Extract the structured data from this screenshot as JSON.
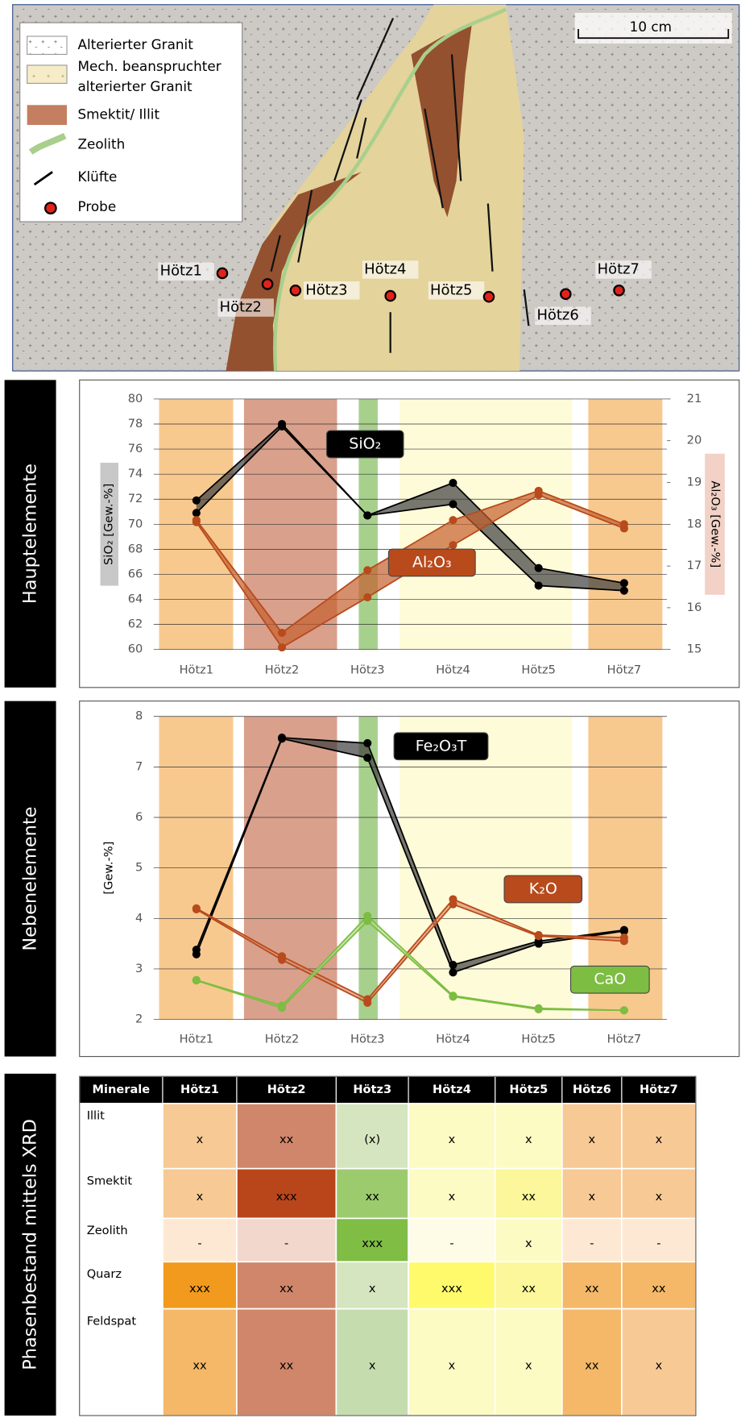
{
  "map": {
    "legend": [
      "Alterierter Granit",
      [
        "Mech. beanspruchter",
        "alterierter Granit"
      ],
      "Smektit/ Illit",
      "Zeolith",
      "Klüfte",
      "Probe"
    ],
    "scale": "10 cm",
    "samples": [
      "Hötz1",
      "Hötz2",
      "Hötz3",
      "Hötz4",
      "Hötz5",
      "Hötz6",
      "Hötz7"
    ]
  },
  "side_labels": [
    "Hauptelemente",
    "Nebenelemente",
    "Phasenbestand mittels XRD"
  ],
  "chart_data": [
    {
      "type": "line",
      "y_label": "SiO₂ [Gew.-%]",
      "y2_label": "Al₂O₃ [Gew.-%]",
      "categories": [
        "Hötz1",
        "Hötz2",
        "Hötz3",
        "Hötz4",
        "Hötz5",
        "Hötz7"
      ],
      "series": [
        {
          "name": "SiO₂",
          "color": "#000000",
          "fill": "#3f3f3f",
          "values": [
            71.9,
            78.0,
            70.7,
            73.3,
            66.5,
            65.3
          ],
          "values2": [
            70.9,
            77.8,
            70.7,
            71.6,
            65.1,
            64.7
          ]
        },
        {
          "name": "Al₂O₃",
          "color": "#b84a1c",
          "fill": "#c4602e",
          "axis": "y2",
          "values": [
            18.1,
            15.4,
            16.9,
            18.1,
            18.8,
            18.0
          ],
          "values2": [
            18.05,
            15.05,
            16.25,
            17.5,
            18.7,
            17.9
          ]
        }
      ],
      "ylim": [
        60,
        80
      ],
      "yticks": [
        60,
        62,
        64,
        66,
        68,
        70,
        72,
        74,
        76,
        78,
        80
      ],
      "y2lim": [
        15,
        21
      ],
      "y2ticks": [
        15,
        16,
        17,
        18,
        19,
        20,
        21
      ],
      "grid": true
    },
    {
      "type": "line",
      "y_label": "[Gew.-%]",
      "categories": [
        "Hötz1",
        "Hötz2",
        "Hötz3",
        "Hötz4",
        "Hötz5",
        "Hötz7"
      ],
      "series": [
        {
          "name": "Fe₂O₃T",
          "color": "#000000",
          "fill": "#3f3f3f",
          "values": [
            3.38,
            7.58,
            7.47,
            3.08,
            3.55,
            3.77
          ],
          "values2": [
            3.29,
            7.56,
            7.18,
            2.93,
            3.5,
            3.75
          ]
        },
        {
          "name": "K₂O",
          "color": "#b84a1c",
          "fill": "#d9906a",
          "values": [
            4.2,
            3.25,
            2.4,
            4.38,
            3.67,
            3.62
          ],
          "values2": [
            4.18,
            3.18,
            2.33,
            4.28,
            3.65,
            3.55
          ]
        },
        {
          "name": "CaO",
          "color": "#7cbd42",
          "fill": "#b5db92",
          "values": [
            2.78,
            2.27,
            4.05,
            2.47,
            2.22,
            2.18
          ],
          "values2": [
            2.77,
            2.23,
            3.95,
            2.45,
            2.2,
            2.18
          ]
        }
      ],
      "ylim": [
        2,
        8
      ],
      "yticks": [
        2,
        3,
        4,
        5,
        6,
        7,
        8
      ],
      "grid": true
    }
  ],
  "table": {
    "header": [
      "Minerale",
      "Hötz1",
      "Hötz2",
      "Hötz3",
      "Hötz4",
      "Hötz5",
      "Hötz6",
      "Hötz7"
    ],
    "rows": [
      [
        "Illit",
        "x",
        "xx",
        "(x)",
        "x",
        "x",
        "x",
        "x"
      ],
      [
        "Smektit",
        "x",
        "xxx",
        "xx",
        "x",
        "xx",
        "x",
        "x"
      ],
      [
        "Zeolith",
        "-",
        "-",
        "xxx",
        "-",
        "x",
        "-",
        "-"
      ],
      [
        "Quarz",
        "xxx",
        "xx",
        "x",
        "xxx",
        "xx",
        "xx",
        "xx"
      ],
      [
        "Feldspat",
        "xx",
        "xx",
        "x",
        "x",
        "x",
        "xx",
        "x"
      ]
    ],
    "cell_colors": [
      [
        "#f7c995",
        "#d0866a",
        "#d5e5bf",
        "#fdfbc4",
        "#fdfbc4",
        "#f7c995",
        "#f7c995"
      ],
      [
        "#f7c995",
        "#b9451b",
        "#9ccb6e",
        "#fdfbc4",
        "#fbf79a",
        "#f7c995",
        "#f7c995"
      ],
      [
        "#fde9d3",
        "#f2d7cd",
        "#7fbd44",
        "#fefce6",
        "#fdfbc4",
        "#fde9d3",
        "#fde9d3"
      ],
      [
        "#f29a1e",
        "#d0866a",
        "#d5e5bf",
        "#fefa6c",
        "#fbf79a",
        "#f4b868",
        "#f4b868"
      ],
      [
        "#f4b868",
        "#d0866a",
        "#c5ddae",
        "#fdfbc4",
        "#fdfbc4",
        "#f4b868",
        "#f7c995"
      ]
    ]
  }
}
